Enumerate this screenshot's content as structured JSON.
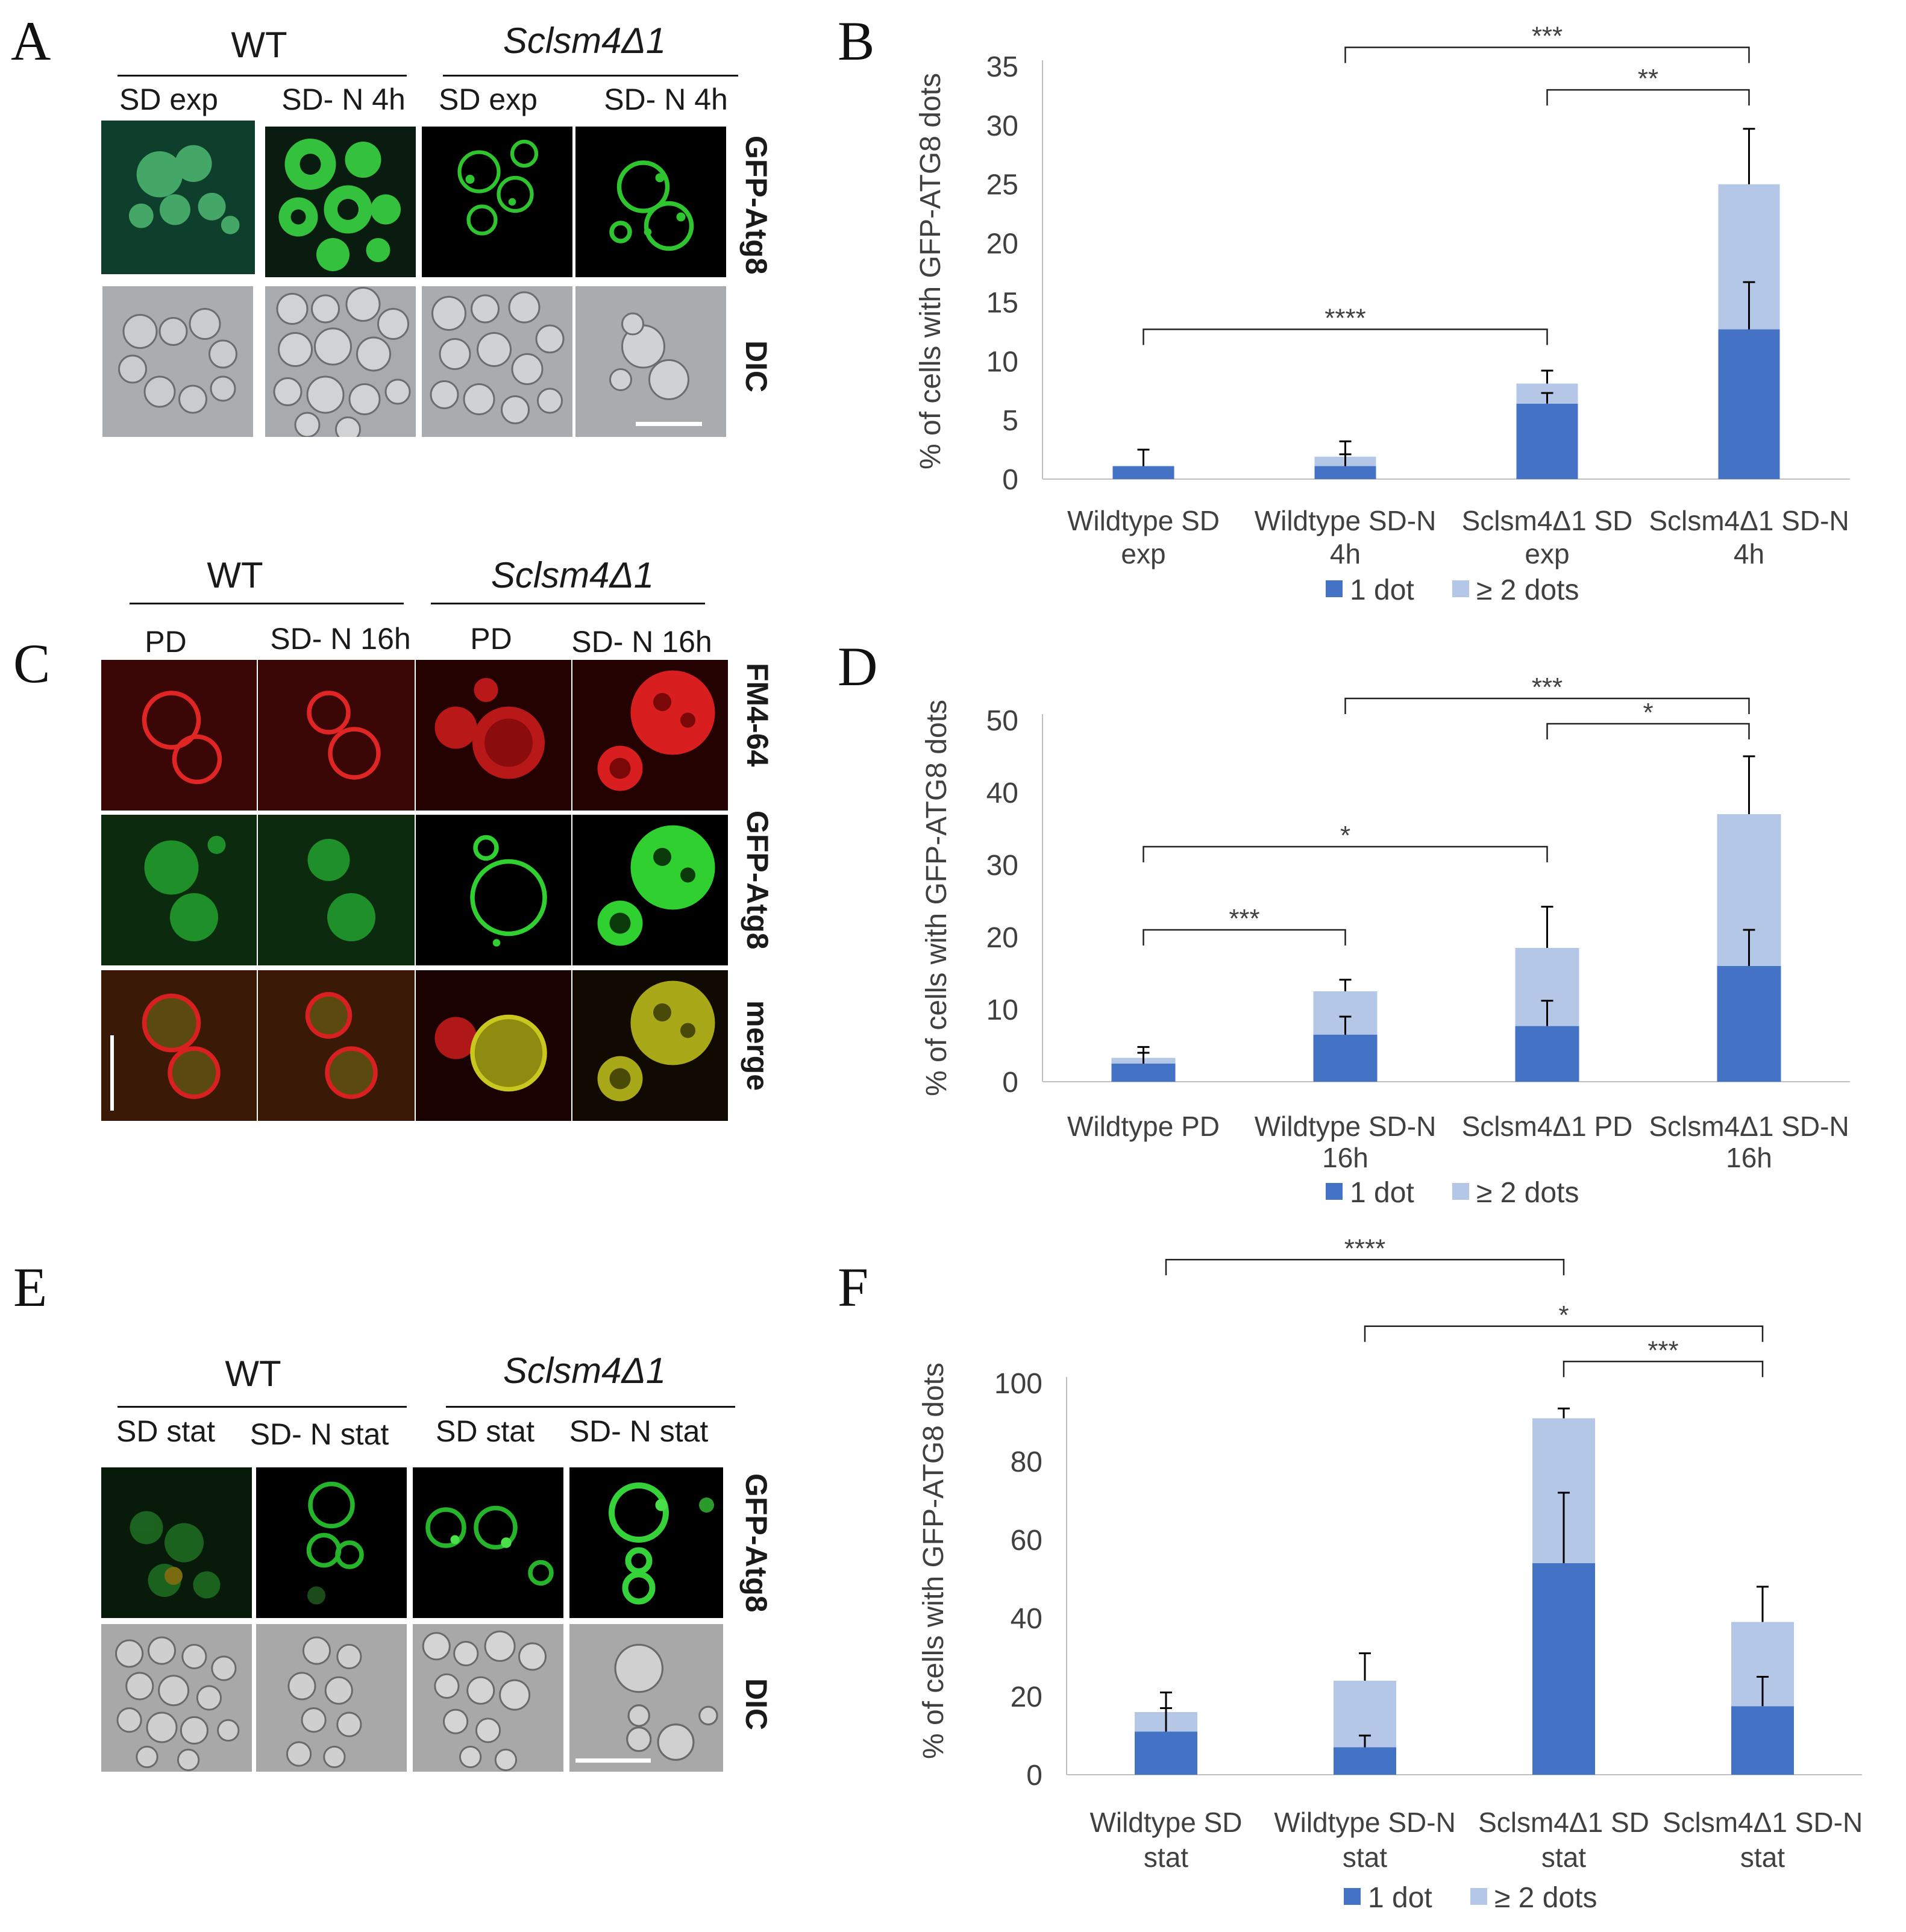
{
  "colors": {
    "one_dot": "#4472C4",
    "two_dots": "#B4C7E7",
    "wt_gfp_bg": "#0f2a1a",
    "red": "#e01818",
    "green": "#22d322"
  },
  "panels": {
    "A": {
      "letter": "A",
      "group_left": "WT",
      "group_right": "Sclsm4Δ1",
      "columns": [
        "SD exp",
        "SD- N 4h",
        "SD exp",
        "SD- N 4h"
      ],
      "rows": [
        "GFP-Atg8",
        "DIC"
      ]
    },
    "B": {
      "letter": "B"
    },
    "C": {
      "letter": "C",
      "group_left": "WT",
      "group_right": "Sclsm4Δ1",
      "columns": [
        "PD",
        "SD- N 16h",
        "PD",
        "SD- N 16h"
      ],
      "rows": [
        "FM4-64",
        "GFP-Atg8",
        "merge"
      ]
    },
    "D": {
      "letter": "D"
    },
    "E": {
      "letter": "E",
      "group_left": "WT",
      "group_right": "Sclsm4Δ1",
      "columns": [
        "SD stat",
        "SD- N stat",
        "SD stat",
        "SD- N stat"
      ],
      "rows": [
        "GFP-Atg8",
        "DIC"
      ]
    },
    "F": {
      "letter": "F"
    }
  },
  "chart_data": [
    {
      "panel": "B",
      "type": "bar",
      "stacked": true,
      "ylabel": "% of cells with GFP-ATG8 dots",
      "ylim": [
        0,
        35
      ],
      "yticks": [
        0,
        5,
        10,
        15,
        20,
        25,
        30,
        35
      ],
      "categories": [
        [
          "Wildtype SD",
          "exp"
        ],
        [
          "Wildtype SD-N",
          "4h"
        ],
        [
          "Sclsm4Δ1 SD",
          "exp"
        ],
        [
          "Sclsm4Δ1 SD-N",
          "4h"
        ]
      ],
      "series": [
        {
          "name": "1 dot",
          "values": [
            1.1,
            1.1,
            6.4,
            12.7
          ],
          "errors": [
            1.4,
            1.0,
            0.9,
            4.0
          ]
        },
        {
          "name": "≥ 2 dots",
          "values": [
            0.0,
            0.8,
            1.7,
            12.3
          ],
          "errors": [
            0.0,
            1.3,
            1.1,
            4.7
          ]
        }
      ],
      "significance": [
        {
          "from": 0,
          "to": 2,
          "label": "****",
          "y": 12.7
        },
        {
          "from": 1,
          "to": 3,
          "label": "***",
          "y": 36.6
        },
        {
          "from": 2,
          "to": 3,
          "label": "**",
          "y": 33.0
        }
      ],
      "legend": "bottom"
    },
    {
      "panel": "D",
      "type": "bar",
      "stacked": true,
      "ylabel": "% of cells with GFP-ATG8 dots",
      "ylim": [
        0,
        50
      ],
      "yticks": [
        0,
        10,
        20,
        30,
        40,
        50
      ],
      "categories": [
        [
          "Wildtype PD"
        ],
        [
          "Wildtype SD-N",
          "16h"
        ],
        [
          "Sclsm4Δ1 PD"
        ],
        [
          "Sclsm4Δ1 SD-N",
          "16h"
        ]
      ],
      "series": [
        {
          "name": "1 dot",
          "values": [
            2.5,
            6.5,
            7.7,
            16.0
          ],
          "errors": [
            1.5,
            2.5,
            3.5,
            5.0
          ]
        },
        {
          "name": "≥ 2 dots",
          "values": [
            0.8,
            6.0,
            10.8,
            21.0
          ],
          "errors": [
            1.5,
            1.6,
            5.7,
            8.0
          ]
        }
      ],
      "significance": [
        {
          "from": 0,
          "to": 1,
          "label": "***",
          "y": 21.0
        },
        {
          "from": 0,
          "to": 2,
          "label": "*",
          "y": 32.5
        },
        {
          "from": 1,
          "to": 3,
          "label": "***",
          "y": 53.0
        },
        {
          "from": 2,
          "to": 3,
          "label": "*",
          "y": 49.5
        }
      ],
      "legend": "bottom"
    },
    {
      "panel": "F",
      "type": "bar",
      "stacked": true,
      "ylabel": "% of cells with GFP-ATG8 dots",
      "ylim": [
        0,
        100
      ],
      "yticks": [
        0,
        20,
        40,
        60,
        80,
        100
      ],
      "categories": [
        [
          "Wildtype SD",
          "stat"
        ],
        [
          "Wildtype SD-N",
          "stat"
        ],
        [
          "Sclsm4Δ1 SD",
          "stat"
        ],
        [
          "Sclsm4Δ1 SD-N",
          "stat"
        ]
      ],
      "series": [
        {
          "name": "1 dot",
          "values": [
            11,
            7,
            54,
            17.5
          ],
          "errors": [
            6,
            3,
            18,
            7.5
          ]
        },
        {
          "name": "≥ 2 dots",
          "values": [
            5,
            17,
            37,
            21.5
          ],
          "errors": [
            5,
            7,
            2.5,
            9
          ]
        }
      ],
      "significance": [
        {
          "from": 0,
          "to": 2,
          "label": "****",
          "y": 131.5
        },
        {
          "from": 1,
          "to": 3,
          "label": "*",
          "y": 114.5
        },
        {
          "from": 2,
          "to": 3,
          "label": "***",
          "y": 105.5
        }
      ],
      "legend": "bottom"
    }
  ]
}
